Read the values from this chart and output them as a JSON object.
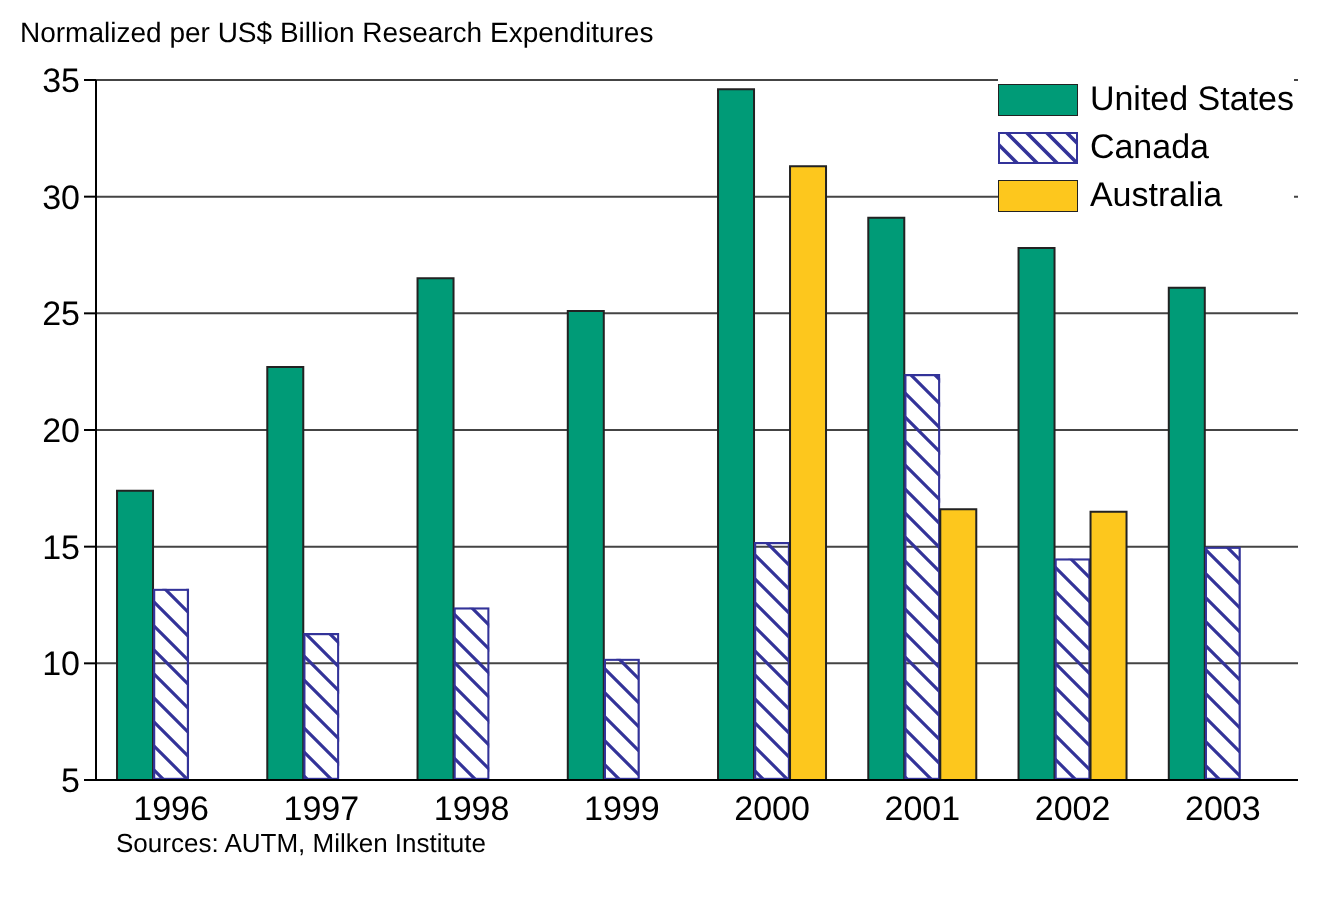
{
  "chart_data": {
    "type": "bar",
    "ylabel": "Normalized per US$ Billion Research Expenditures",
    "categories": [
      "1996",
      "1997",
      "1998",
      "1999",
      "2000",
      "2001",
      "2002",
      "2003"
    ],
    "series": [
      {
        "name": "United States",
        "color": "#009b77",
        "values": [
          17.4,
          22.7,
          26.5,
          25.1,
          34.6,
          29.1,
          27.8,
          26.1
        ]
      },
      {
        "name": "Canada",
        "color": "#333399",
        "values": [
          13.2,
          11.3,
          12.4,
          10.2,
          15.2,
          22.4,
          14.5,
          15.0
        ]
      },
      {
        "name": "Australia",
        "color": "#fdc71d",
        "values": [
          null,
          null,
          null,
          null,
          31.3,
          16.6,
          16.5,
          null
        ]
      }
    ],
    "ylim": [
      5,
      35
    ],
    "yticks": [
      5,
      10,
      15,
      20,
      25,
      30,
      35
    ],
    "grid": "y",
    "legend": "top right",
    "annotations": [
      "Sources: AUTM, Milken Institute"
    ]
  }
}
